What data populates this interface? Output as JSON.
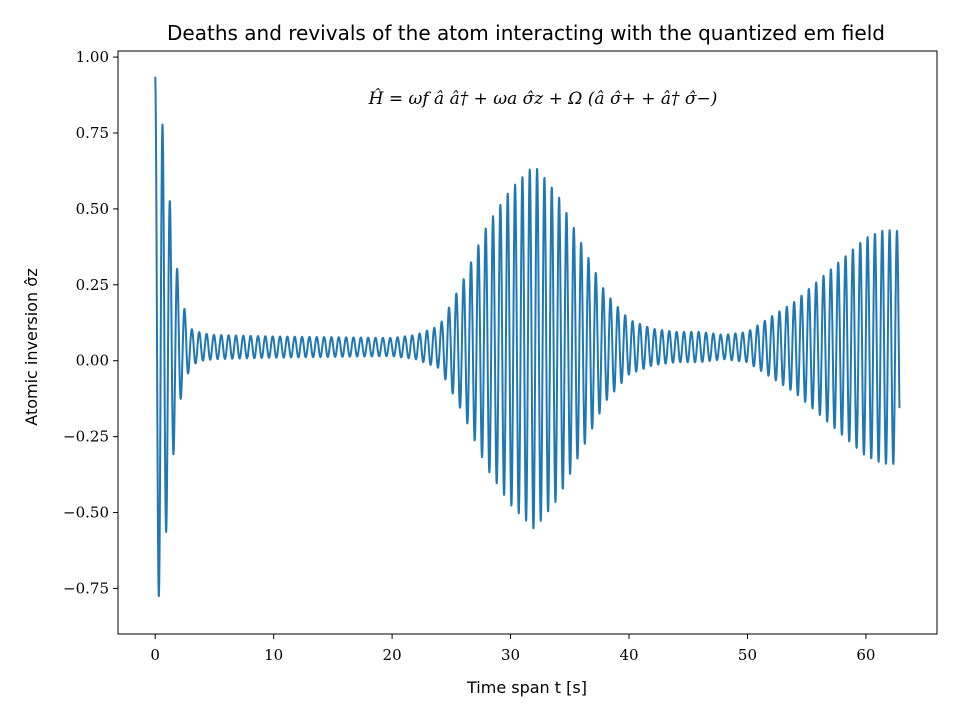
{
  "chart_data": {
    "type": "line",
    "title": "Deaths and revivals of the atom interacting with the quantized em field",
    "xlabel": "Time span t [s]",
    "ylabel": "Atomic inversion σ̂z",
    "annotation": "Ĥ = ωf â â† + ωa σ̂z + Ω (â σ̂+ + â† σ̂−)",
    "xlim": [
      -3.14,
      66.0
    ],
    "ylim": [
      -0.9,
      1.02
    ],
    "x_ticks": [
      0,
      10,
      20,
      30,
      40,
      50,
      60
    ],
    "x_tick_labels": [
      "0",
      "10",
      "20",
      "30",
      "40",
      "50",
      "60"
    ],
    "y_ticks": [
      1.0,
      0.75,
      0.5,
      0.25,
      0.0,
      -0.25,
      -0.5,
      -0.75
    ],
    "y_tick_labels": [
      "1.00",
      "0.75",
      "0.50",
      "0.25",
      "0.00",
      "−0.25",
      "−0.50",
      "−0.75"
    ],
    "grid": false,
    "series": [
      {
        "color": "#1f77b4",
        "model": "envelope-estimated",
        "x_range": [
          0,
          62.83
        ],
        "offset": 0.045,
        "period": 0.62,
        "sample_count": 4000,
        "envelope_points": [
          [
            0,
            0.89
          ],
          [
            0.5,
            0.78
          ],
          [
            1,
            0.58
          ],
          [
            1.6,
            0.33
          ],
          [
            2.2,
            0.16
          ],
          [
            3,
            0.06
          ],
          [
            4,
            0.045
          ],
          [
            5,
            0.04
          ],
          [
            10,
            0.035
          ],
          [
            20,
            0.03
          ],
          [
            22,
            0.04
          ],
          [
            24,
            0.07
          ],
          [
            26,
            0.22
          ],
          [
            28,
            0.4
          ],
          [
            30,
            0.52
          ],
          [
            32,
            0.6
          ],
          [
            34,
            0.5
          ],
          [
            36,
            0.34
          ],
          [
            38,
            0.18
          ],
          [
            40,
            0.09
          ],
          [
            42,
            0.06
          ],
          [
            44,
            0.05
          ],
          [
            46,
            0.05
          ],
          [
            48,
            0.04
          ],
          [
            50,
            0.05
          ],
          [
            52,
            0.1
          ],
          [
            54,
            0.15
          ],
          [
            56,
            0.22
          ],
          [
            58,
            0.29
          ],
          [
            60,
            0.36
          ],
          [
            61.5,
            0.385
          ],
          [
            62.5,
            0.385
          ],
          [
            62.83,
            0.38
          ]
        ]
      }
    ]
  }
}
